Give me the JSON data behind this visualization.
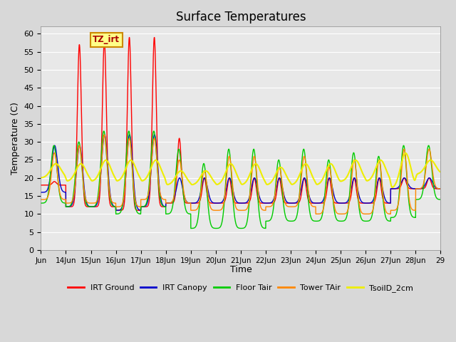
{
  "title": "Surface Temperatures",
  "xlabel": "Time",
  "ylabel": "Temperature (C)",
  "ylim": [
    0,
    62
  ],
  "yticks": [
    0,
    5,
    10,
    15,
    20,
    25,
    30,
    35,
    40,
    45,
    50,
    55,
    60
  ],
  "background_color": "#e0e0e0",
  "plot_bg_color": "#e8e8e8",
  "tz_label": "TZ_irt",
  "legend": [
    "IRT Ground",
    "IRT Canopy",
    "Floor Tair",
    "Tower TAir",
    "TsoilD_2cm"
  ],
  "line_colors": [
    "#ff0000",
    "#0000cc",
    "#00cc00",
    "#ff8800",
    "#eeee00"
  ],
  "line_widths": [
    1.0,
    1.0,
    1.0,
    1.0,
    1.5
  ],
  "x_tick_labels": [
    "Jun",
    "14Jun",
    "15Jun",
    "16Jun",
    "17Jun",
    "18Jun",
    "19Jun",
    "20Jun",
    "21Jun",
    "22Jun",
    "23Jun",
    "24Jun",
    "25Jun",
    "26Jun",
    "27Jun",
    "28Jun",
    "29"
  ]
}
